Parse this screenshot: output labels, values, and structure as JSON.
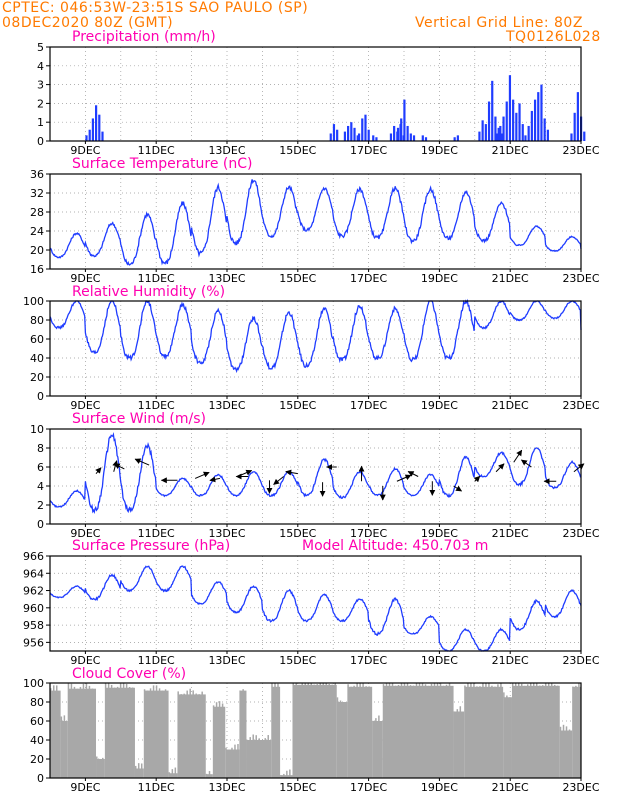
{
  "header": {
    "line1_left": "CPTEC:    046:53W-23:51S  SAO PAULO (SP)",
    "line2_left": "08DEC2020 80Z (GMT)",
    "line1_right": "Vertical Grid Line: 80Z",
    "line2_right": "TQ0126L028",
    "model_altitude": "Model Altitude: 450.703 m"
  },
  "colors": {
    "header": "#ff7a00",
    "panel_title": "#ff00b0",
    "series": "#1f3cff",
    "cloud": "#a8a8a8",
    "wind_arrow": "#000000",
    "grid": "#999999"
  },
  "chart_data": [
    {
      "id": "precipitation",
      "type": "bar",
      "title": "Precipitation (mm/h)",
      "ylim": [
        0,
        5
      ],
      "yticks": [
        "0",
        "1",
        "2",
        "3",
        "4",
        "5"
      ],
      "xlabels": [
        "9DEC",
        "11DEC",
        "13DEC",
        "15DEC",
        "17DEC",
        "19DEC",
        "21DEC",
        "23DEC"
      ],
      "grid": true,
      "events": [
        {
          "day": 9.0,
          "values": [
            0.3,
            0.6,
            1.2,
            1.9,
            1.4,
            0.5
          ]
        },
        {
          "day": 15.9,
          "values": [
            0.4,
            0.9,
            0.6
          ]
        },
        {
          "day": 16.3,
          "values": [
            0.5,
            0.8,
            1.0,
            0.7,
            0.3
          ]
        },
        {
          "day": 16.7,
          "values": [
            0.4,
            1.2,
            1.4,
            0.6
          ]
        },
        {
          "day": 17.1,
          "values": [
            0.3,
            0.2
          ]
        },
        {
          "day": 17.6,
          "values": [
            0.4,
            0.8,
            0.5,
            0.9,
            0.3
          ]
        },
        {
          "day": 17.8,
          "values": [
            0.7,
            1.2,
            2.2,
            0.8,
            0.4,
            0.3
          ]
        },
        {
          "day": 18.5,
          "values": [
            0.3,
            0.2
          ]
        },
        {
          "day": 19.4,
          "values": [
            0.2,
            0.3
          ]
        },
        {
          "day": 20.1,
          "values": [
            0.5,
            1.1,
            0.9,
            2.1,
            3.2,
            1.3,
            0.7,
            0.4
          ]
        },
        {
          "day": 20.6,
          "values": [
            0.4,
            0.8,
            1.3,
            2.1,
            3.5,
            2.2,
            1.5,
            2.0,
            0.9
          ]
        },
        {
          "day": 21.4,
          "values": [
            0.3,
            0.8,
            1.6,
            2.2,
            2.6,
            3.0,
            1.2,
            0.6
          ]
        },
        {
          "day": 22.7,
          "values": [
            0.4,
            1.5,
            2.6,
            1.3,
            0.5
          ]
        }
      ]
    },
    {
      "id": "temperature",
      "type": "line",
      "title": "Surface Temperature (nC)",
      "ylim": [
        16,
        36
      ],
      "yticks": [
        "16",
        "20",
        "24",
        "28",
        "32",
        "36"
      ],
      "xlabels": [
        "9DEC",
        "11DEC",
        "13DEC",
        "15DEC",
        "17DEC",
        "19DEC",
        "21DEC",
        "23DEC"
      ],
      "grid": true,
      "series": [
        {
          "min": [
            18.5,
            18.8,
            17.0,
            17.3,
            19.3,
            21.5,
            23.0,
            24.2,
            23.0,
            22.6,
            22.0,
            22.5,
            22.0,
            21.0,
            19.8,
            19.3
          ],
          "max": [
            23.5,
            25.6,
            27.5,
            29.8,
            33.2,
            34.8,
            33.2,
            33.0,
            32.8,
            33.0,
            32.8,
            32.2,
            29.8,
            25.0,
            22.8,
            21.8
          ]
        }
      ]
    },
    {
      "id": "humidity",
      "type": "line",
      "title": "Relative Humidity (%)",
      "ylim": [
        0,
        100
      ],
      "yticks": [
        "0",
        "20",
        "40",
        "60",
        "80",
        "100"
      ],
      "xlabels": [
        "9DEC",
        "11DEC",
        "13DEC",
        "15DEC",
        "17DEC",
        "19DEC",
        "21DEC",
        "23DEC"
      ],
      "grid": true,
      "series": [
        {
          "min": [
            72,
            45,
            40,
            42,
            35,
            28,
            30,
            32,
            38,
            40,
            38,
            40,
            72,
            80,
            82,
            50
          ],
          "max": [
            100,
            100,
            100,
            96,
            90,
            82,
            88,
            92,
            95,
            92,
            100,
            100,
            100,
            100,
            100,
            100
          ]
        }
      ]
    },
    {
      "id": "wind",
      "type": "line",
      "title": "Surface Wind (m/s)",
      "ylim": [
        0,
        10
      ],
      "yticks": [
        "0",
        "2",
        "4",
        "6",
        "8",
        "10"
      ],
      "xlabels": [
        "9DEC",
        "11DEC",
        "13DEC",
        "15DEC",
        "17DEC",
        "19DEC",
        "21DEC",
        "23DEC"
      ],
      "grid": true,
      "series": [
        {
          "min": [
            1.8,
            1.5,
            1.5,
            3.0,
            3.0,
            3.0,
            3.0,
            3.0,
            2.8,
            3.0,
            3.0,
            3.0,
            5.0,
            4.2,
            3.8,
            4.5
          ],
          "max": [
            3.5,
            9.4,
            8.2,
            4.8,
            5.2,
            5.5,
            5.5,
            6.8,
            5.5,
            5.8,
            5.2,
            7.0,
            7.5,
            8.0,
            6.5,
            6.0
          ]
        }
      ],
      "arrows": [
        {
          "day": 9.3,
          "y": 5.3,
          "dx": 5,
          "dy": -6
        },
        {
          "day": 9.8,
          "y": 5.5,
          "dx": 3,
          "dy": -11
        },
        {
          "day": 10.1,
          "y": 5.8,
          "dx": -10,
          "dy": -5
        },
        {
          "day": 10.8,
          "y": 6.2,
          "dx": -14,
          "dy": -6
        },
        {
          "day": 11.6,
          "y": 4.6,
          "dx": -16,
          "dy": 0
        },
        {
          "day": 12.1,
          "y": 4.8,
          "dx": 14,
          "dy": -6
        },
        {
          "day": 12.8,
          "y": 4.8,
          "dx": -10,
          "dy": 2
        },
        {
          "day": 13.3,
          "y": 5.0,
          "dx": 14,
          "dy": -6
        },
        {
          "day": 13.6,
          "y": 5.0,
          "dx": -12,
          "dy": 0
        },
        {
          "day": 14.2,
          "y": 4.6,
          "dx": 0,
          "dy": 13
        },
        {
          "day": 14.6,
          "y": 5.0,
          "dx": -10,
          "dy": 8
        },
        {
          "day": 15.0,
          "y": 5.3,
          "dx": -12,
          "dy": -2
        },
        {
          "day": 15.7,
          "y": 4.4,
          "dx": 0,
          "dy": 14
        },
        {
          "day": 16.1,
          "y": 6.0,
          "dx": -10,
          "dy": 0
        },
        {
          "day": 16.8,
          "y": 4.5,
          "dx": 0,
          "dy": -15
        },
        {
          "day": 17.4,
          "y": 4.0,
          "dx": 0,
          "dy": 14
        },
        {
          "day": 17.8,
          "y": 4.5,
          "dx": 14,
          "dy": -6
        },
        {
          "day": 18.4,
          "y": 5.0,
          "dx": -10,
          "dy": -5
        },
        {
          "day": 18.8,
          "y": 4.5,
          "dx": 0,
          "dy": 14
        },
        {
          "day": 19.4,
          "y": 4.0,
          "dx": 8,
          "dy": 5
        },
        {
          "day": 20.0,
          "y": 4.5,
          "dx": 5,
          "dy": -5
        },
        {
          "day": 20.6,
          "y": 5.5,
          "dx": 8,
          "dy": -8
        },
        {
          "day": 21.1,
          "y": 6.5,
          "dx": 8,
          "dy": -12
        },
        {
          "day": 21.6,
          "y": 6.0,
          "dx": -10,
          "dy": -7
        },
        {
          "day": 22.3,
          "y": 4.5,
          "dx": -12,
          "dy": 0
        },
        {
          "day": 22.8,
          "y": 5.5,
          "dx": 10,
          "dy": -8
        }
      ]
    },
    {
      "id": "pressure",
      "type": "line",
      "title": "Surface Pressure (hPa)",
      "ylim": [
        955,
        966
      ],
      "yticks": [
        "956",
        "958",
        "960",
        "962",
        "964",
        "966"
      ],
      "xlabels": [
        "9DEC",
        "11DEC",
        "13DEC",
        "15DEC",
        "17DEC",
        "19DEC",
        "21DEC",
        "23DEC"
      ],
      "grid": true,
      "series": [
        {
          "min": [
            961.2,
            961.0,
            962.0,
            962.0,
            960.5,
            959.5,
            958.5,
            958.5,
            958.5,
            957.0,
            957.0,
            955.0,
            955.0,
            957.5,
            959.0,
            959.0
          ],
          "max": [
            962.5,
            963.8,
            964.8,
            964.8,
            963.0,
            962.5,
            962.0,
            961.5,
            961.0,
            961.0,
            959.0,
            957.5,
            957.5,
            960.8,
            962.0,
            962.0
          ]
        }
      ]
    },
    {
      "id": "cloud",
      "type": "bar",
      "title": "Cloud Cover (%)",
      "ylim": [
        0,
        100
      ],
      "yticks": [
        "0",
        "20",
        "40",
        "60",
        "80",
        "100"
      ],
      "xlabels": [
        "9DEC",
        "11DEC",
        "13DEC",
        "15DEC",
        "17DEC",
        "19DEC",
        "21DEC",
        "23DEC"
      ],
      "grid": true,
      "segments": [
        [
          8.0,
          8.3,
          92
        ],
        [
          8.3,
          8.5,
          60
        ],
        [
          8.5,
          9.3,
          94
        ],
        [
          9.3,
          9.55,
          20
        ],
        [
          9.55,
          10.4,
          95
        ],
        [
          10.4,
          10.65,
          10
        ],
        [
          10.65,
          11.35,
          92
        ],
        [
          11.35,
          11.6,
          5
        ],
        [
          11.6,
          12.4,
          88
        ],
        [
          12.4,
          12.6,
          4
        ],
        [
          12.6,
          12.95,
          75
        ],
        [
          12.95,
          13.35,
          30
        ],
        [
          13.35,
          13.55,
          92
        ],
        [
          13.55,
          14.25,
          40
        ],
        [
          14.25,
          14.5,
          96
        ],
        [
          14.5,
          14.85,
          3
        ],
        [
          14.85,
          16.1,
          98
        ],
        [
          16.1,
          16.4,
          80
        ],
        [
          16.4,
          17.1,
          96
        ],
        [
          17.1,
          17.4,
          60
        ],
        [
          17.4,
          19.4,
          97
        ],
        [
          19.4,
          19.7,
          70
        ],
        [
          19.7,
          20.8,
          96
        ],
        [
          20.8,
          21.05,
          85
        ],
        [
          21.05,
          22.4,
          97
        ],
        [
          22.4,
          22.75,
          50
        ],
        [
          22.75,
          23.0,
          96
        ]
      ]
    }
  ]
}
